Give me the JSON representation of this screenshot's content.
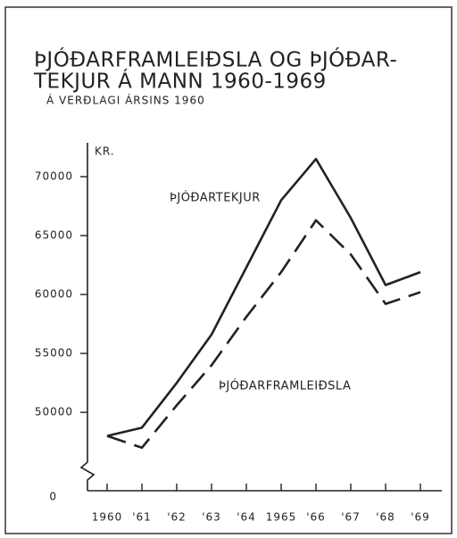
{
  "chart_data": {
    "type": "line",
    "title_lines": [
      "ÞJÓÐARFRAMLEIÐSLA OG ÞJÓÐAR-",
      "TEKJUR Á MANN 1960-1969"
    ],
    "subtitle": "Á VERÐLAGI ÁRSINS 1960",
    "y_label": "KR.",
    "categories": [
      "1960",
      "'61",
      "'62",
      "'63",
      "'64",
      "1965",
      "'66",
      "'67",
      "'68",
      "'69"
    ],
    "series": [
      {
        "name": "ÞJÓÐARTEKJUR",
        "color": "#222",
        "dashed": false,
        "values": [
          48000,
          48700,
          52500,
          56600,
          62300,
          68000,
          71500,
          66500,
          60800,
          61900
        ]
      },
      {
        "name": "ÞJÓÐARFRAMLEIÐSLA",
        "color": "#222",
        "dashed": true,
        "values": [
          48000,
          47000,
          50600,
          54000,
          58100,
          61900,
          66300,
          63400,
          59200,
          60200
        ]
      }
    ],
    "ylim": [
      0,
      72500
    ],
    "axis_break": [
      0,
      46000
    ],
    "yticks": [
      0,
      50000,
      55000,
      60000,
      65000,
      70000
    ],
    "grid": false
  }
}
